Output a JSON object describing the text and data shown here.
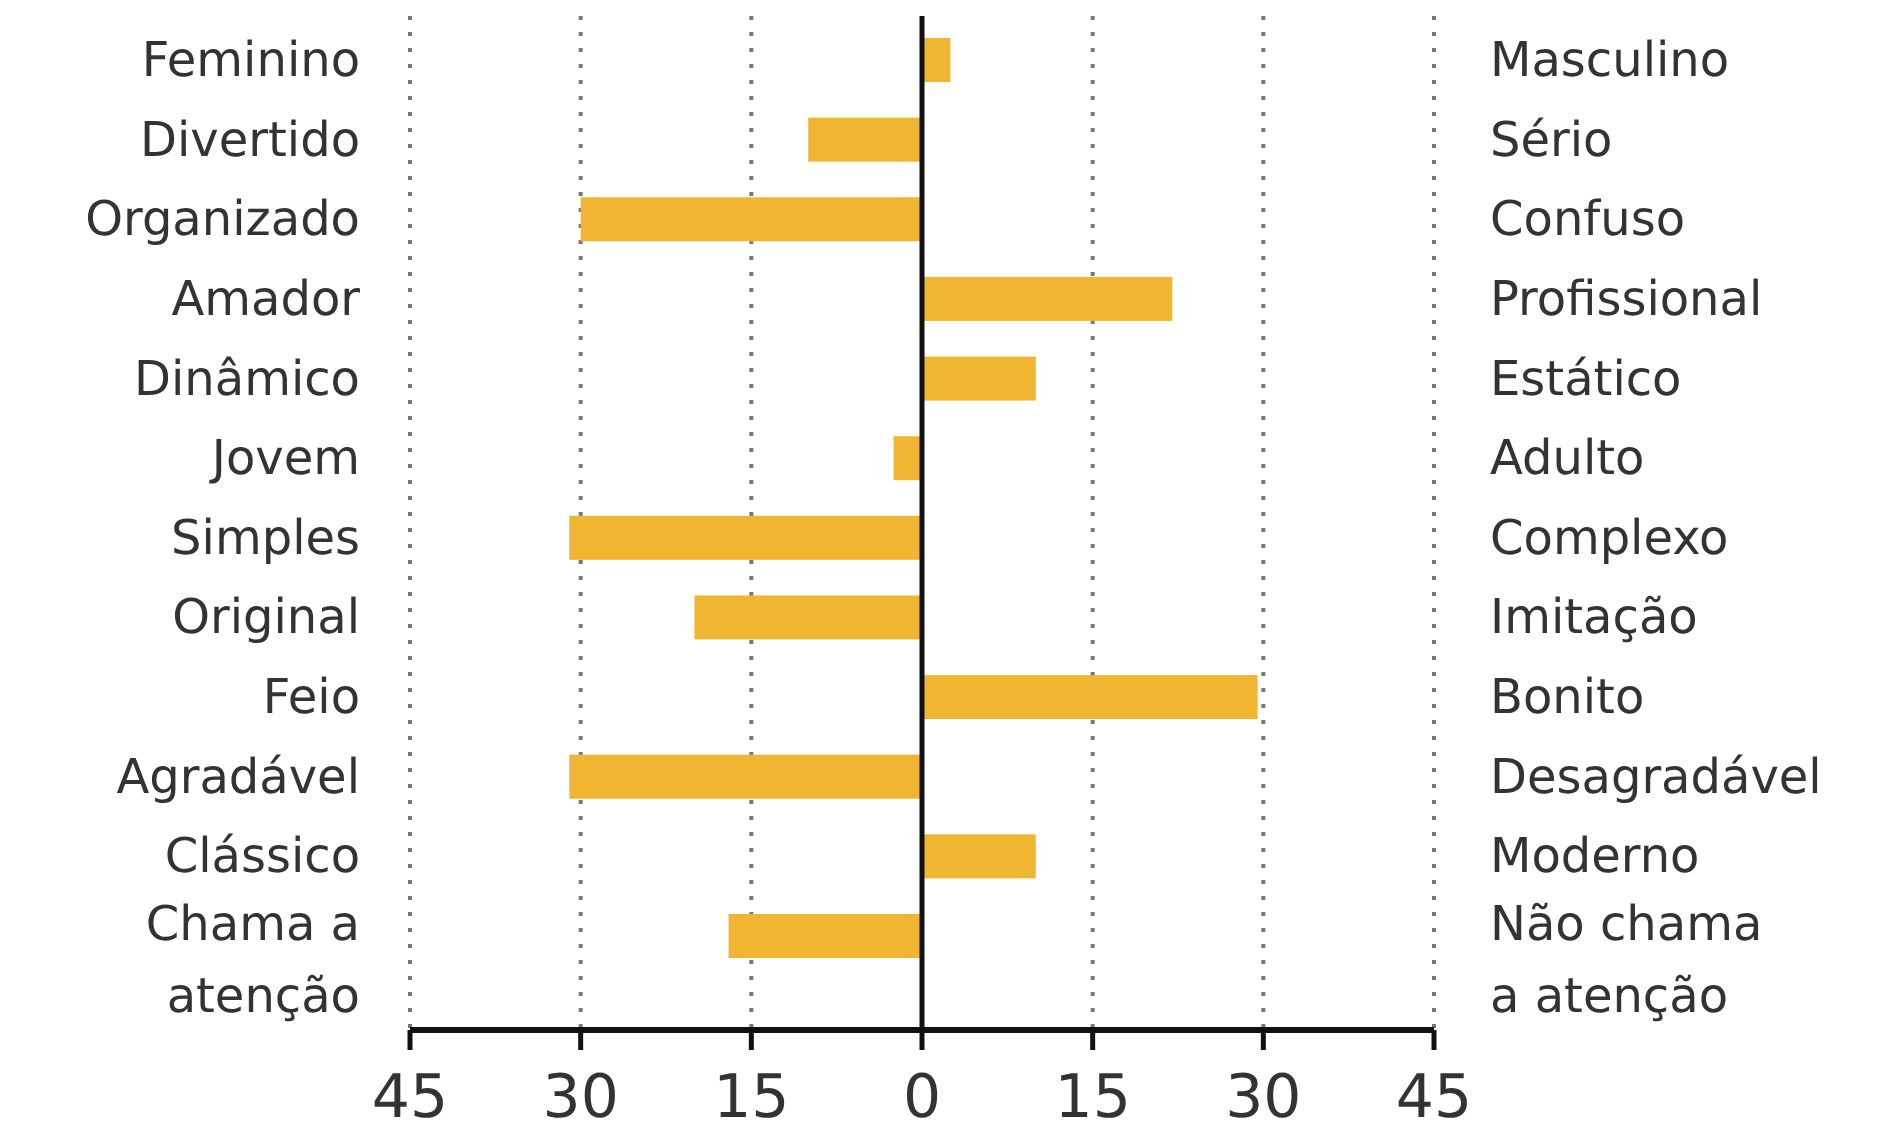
{
  "chart_data": {
    "type": "bar",
    "orientation": "horizontal",
    "categories": [
      "Feminino",
      "Divertido",
      "Organizado",
      "Amador",
      "Dinâmico",
      "Jovem",
      "Simples",
      "Original",
      "Feio",
      "Agradável",
      "Clássico",
      "Chama a atenção"
    ],
    "y2_categories": [
      "Masculino",
      "Sério",
      "Confuso",
      "Profissional",
      "Estático",
      "Adulto",
      "Complexo",
      "Imitação",
      "Bonito",
      "Desagradável",
      "Moderno",
      "Não chama a atenção"
    ],
    "values": [
      2.5,
      -10,
      -30,
      22,
      10,
      -2.5,
      -31,
      -20,
      29.5,
      -31,
      10,
      -17
    ],
    "color": "#f0b631",
    "xlim": [
      -45,
      45
    ],
    "xticks": [
      {
        "value": -45,
        "label": "45"
      },
      {
        "value": -30,
        "label": "30"
      },
      {
        "value": -15,
        "label": "15"
      },
      0,
      15,
      30,
      45
    ],
    "grid": "x"
  }
}
